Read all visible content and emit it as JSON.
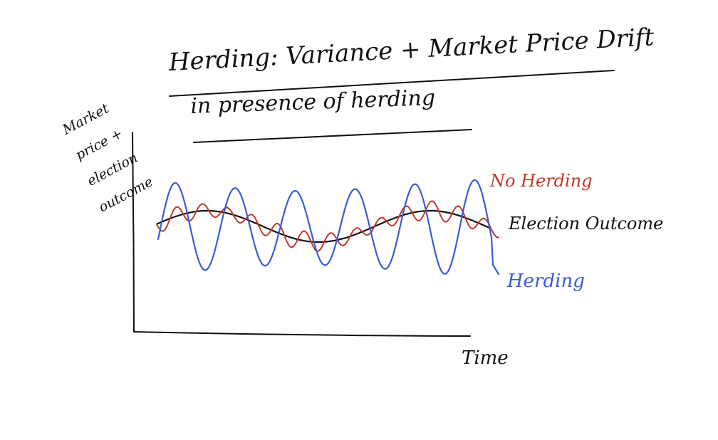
{
  "title": {
    "line1": "Herding: Variance + Market Price Drift",
    "line2": "in presence of herding"
  },
  "axes": {
    "ylabel": "Market price + election outcome",
    "xlabel": "Time"
  },
  "legend": {
    "no_herding": "No Herding",
    "election_outcome": "Election Outcome",
    "herding": "Herding"
  },
  "colors": {
    "no_herding": "#c0392b",
    "election_outcome": "#111111",
    "herding": "#3a5bd9",
    "ink": "#111111"
  },
  "chart_data": {
    "type": "line",
    "title": "Herding: Variance + Market Price Drift in presence of herding",
    "xlabel": "Time",
    "ylabel": "Market price + election outcome",
    "grid": false,
    "legend_placement": "right",
    "series": [
      {
        "name": "Election Outcome",
        "color": "#111111"
      },
      {
        "name": "No Herding",
        "color": "#c0392b"
      },
      {
        "name": "Herding",
        "color": "#3a5bd9"
      }
    ]
  }
}
